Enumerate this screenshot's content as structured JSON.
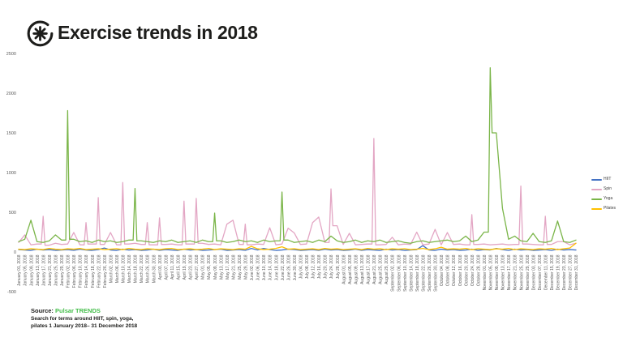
{
  "header": {
    "title": "Exercise trends in 2018",
    "logo": "pulsar-logo"
  },
  "source": {
    "label": "Source:",
    "name": "Pulsar TRENDS",
    "line1": "Search for terms around HIIT, spin, yoga,",
    "line2": "pilates 1 January 2018– 31 December 2018"
  },
  "colors": {
    "title_text": "#1d1d1b",
    "source_green": "#43bd49",
    "axis_text": "#595959",
    "background": "#ffffff"
  },
  "chart_data": {
    "type": "line",
    "title": "Exercise trends in 2018",
    "xlabel": "",
    "ylabel": "",
    "y_ticks": [
      2500,
      2000,
      1500,
      1000,
      500,
      0,
      -500
    ],
    "y_range": [
      -500,
      2500
    ],
    "grid": false,
    "legend_position": "right",
    "x_label_dates": [
      "January 01, 2018",
      "January 05, 2018",
      "January 09, 2018",
      "January 13, 2018",
      "January 17, 2018",
      "January 21, 2018",
      "January 25, 2018",
      "January 29, 2018",
      "February 02, 2018",
      "February 06, 2018",
      "February 10, 2018",
      "February 14, 2018",
      "February 18, 2018",
      "February 22, 2018",
      "February 26, 2018",
      "March 02, 2018",
      "March 06, 2018",
      "March 10, 2018",
      "March 14, 2018",
      "March 18, 2018",
      "March 22, 2018",
      "March 26, 2018",
      "March 30, 2018",
      "April 03, 2018",
      "April 07, 2018",
      "April 11, 2018",
      "April 15, 2018",
      "April 19, 2018",
      "April 23, 2018",
      "April 27, 2018",
      "May 01, 2018",
      "May 05, 2018",
      "May 09, 2018",
      "May 13, 2018",
      "May 17, 2018",
      "May 21, 2018",
      "May 25, 2018",
      "May 29, 2018",
      "June 02, 2018",
      "June 06, 2018",
      "June 10, 2018",
      "June 14, 2018",
      "June 18, 2018",
      "June 22, 2018",
      "June 26, 2018",
      "June 30, 2018",
      "July 04, 2018",
      "July 08, 2018",
      "July 12, 2018",
      "July 16, 2018",
      "July 20, 2018",
      "July 24, 2018",
      "July 28, 2018",
      "August 01, 2018",
      "August 05, 2018",
      "August 09, 2018",
      "August 13, 2018",
      "August 17, 2018",
      "August 21, 2018",
      "August 25, 2018",
      "August 29, 2018",
      "September 02, 2018",
      "September 06, 2018",
      "September 10, 2018",
      "September 14, 2018",
      "September 18, 2018",
      "September 22, 2018",
      "September 26, 2018",
      "September 30, 2018",
      "October 04, 2018",
      "October 08, 2018",
      "October 12, 2018",
      "October 16, 2018",
      "October 20, 2018",
      "October 24, 2018",
      "October 28, 2018",
      "November 01, 2018",
      "November 05, 2018",
      "November 09, 2018",
      "November 13, 2018",
      "November 17, 2018",
      "November 21, 2018",
      "November 25, 2018",
      "November 29, 2018",
      "December 03, 2018",
      "December 07, 2018",
      "December 11, 2018",
      "December 15, 2018",
      "December 19, 2018",
      "December 23, 2018",
      "December 27, 2018",
      "December 31, 2018"
    ],
    "series": [
      {
        "name": "HIIT",
        "color": "#4472c4",
        "values": [
          30,
          25,
          20,
          35,
          25,
          30,
          20,
          25,
          30,
          20,
          35,
          25,
          20,
          30,
          50,
          25,
          20,
          35,
          25,
          30,
          20,
          25,
          35,
          20,
          30,
          25,
          20,
          35,
          25,
          30,
          20,
          25,
          30,
          35,
          20,
          25,
          30,
          20,
          45,
          25,
          45,
          30,
          20,
          25,
          35,
          30,
          20,
          25,
          30,
          20,
          35,
          25,
          30,
          20,
          25,
          35,
          20,
          30,
          25,
          20,
          35,
          25,
          30,
          20,
          25,
          30,
          80,
          25,
          20,
          35,
          25,
          30,
          20,
          25,
          35,
          20,
          30,
          25,
          45,
          30,
          20,
          35,
          25,
          30,
          20,
          25,
          30,
          20,
          35,
          25,
          30,
          25
        ]
      },
      {
        "name": "Spin",
        "color": "#e3a6c4",
        "values": [
          120,
          215,
          90,
          100,
          450,
          85,
          110,
          95,
          100,
          245,
          90,
          370,
          100,
          685,
          95,
          245,
          90,
          875,
          100,
          110,
          95,
          370,
          90,
          430,
          95,
          100,
          90,
          640,
          100,
          675,
          110,
          95,
          100,
          90,
          350,
          400,
          95,
          350,
          90,
          100,
          95,
          305,
          90,
          100,
          300,
          240,
          95,
          100,
          370,
          440,
          120,
          795,
          330,
          95,
          235,
          90,
          95,
          100,
          1430,
          90,
          95,
          185,
          90,
          100,
          95,
          250,
          90,
          100,
          285,
          90,
          245,
          95,
          100,
          90,
          470,
          95,
          100,
          90,
          95,
          100,
          90,
          95,
          830,
          100,
          95,
          90,
          450,
          95,
          130,
          130,
          90,
          110
        ]
      },
      {
        "name": "Yoga",
        "color": "#7ab548",
        "values": [
          130,
          160,
          400,
          130,
          120,
          140,
          215,
          150,
          1780,
          160,
          130,
          140,
          120,
          150,
          130,
          140,
          120,
          130,
          150,
          800,
          140,
          130,
          120,
          140,
          130,
          150,
          120,
          130,
          140,
          120,
          150,
          130,
          490,
          140,
          120,
          130,
          150,
          130,
          140,
          120,
          150,
          130,
          140,
          755,
          150,
          120,
          130,
          140,
          120,
          150,
          130,
          200,
          140,
          120,
          130,
          150,
          120,
          140,
          130,
          150,
          120,
          130,
          140,
          120,
          110,
          130,
          140,
          120,
          130,
          140,
          150,
          130,
          140,
          200,
          130,
          150,
          250,
          2320,
          1500,
          550,
          160,
          200,
          140,
          130,
          235,
          130,
          120,
          140,
          390,
          130,
          120,
          150
        ]
      },
      {
        "name": "Pilates",
        "color": "#ffc000",
        "values": [
          35,
          30,
          40,
          35,
          30,
          45,
          35,
          30,
          40,
          35,
          45,
          30,
          35,
          40,
          30,
          35,
          40,
          30,
          45,
          35,
          30,
          40,
          35,
          30,
          40,
          45,
          30,
          35,
          40,
          30,
          35,
          45,
          30,
          40,
          35,
          30,
          40,
          35,
          70,
          40,
          30,
          35,
          45,
          65,
          35,
          40,
          30,
          35,
          40,
          30,
          45,
          35,
          40,
          30,
          35,
          40,
          30,
          45,
          35,
          40,
          30,
          40,
          35,
          40,
          30,
          35,
          45,
          30,
          40,
          60,
          35,
          40,
          35,
          45,
          30,
          40,
          35,
          30,
          40,
          35,
          45,
          30,
          40,
          35,
          30,
          40,
          35,
          45,
          30,
          40,
          50,
          110
        ]
      }
    ]
  }
}
